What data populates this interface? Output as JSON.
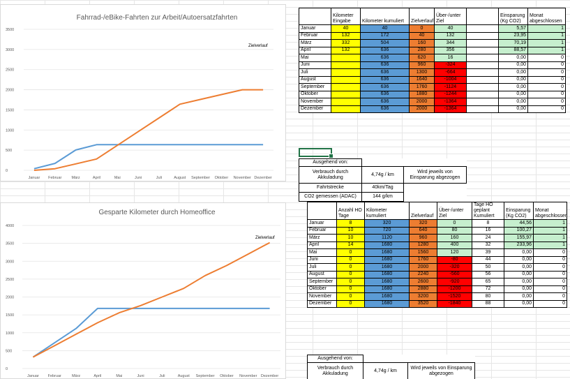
{
  "colors": {
    "series_cumulative": "#5b9bd5",
    "series_target": "#ed7d31",
    "yellow": "#ffff00",
    "blue": "#5b9bd5",
    "orange": "#ed7d31",
    "green": "#c6efce",
    "red": "#ff0000"
  },
  "chart_data": [
    {
      "type": "line",
      "title": "Fahrrad-/eBike-Fahrten zur Arbeit/Autoersatzfahrten",
      "categories": [
        "Januar",
        "Februar",
        "März",
        "April",
        "Mai",
        "Juni",
        "Juli",
        "August",
        "September",
        "Oktober",
        "November",
        "Dezember"
      ],
      "series": [
        {
          "values": [
            40,
            172,
            504,
            636,
            636,
            636,
            636,
            636,
            636,
            636,
            636,
            636
          ]
        },
        {
          "name": "Zielverlauf",
          "values": [
            0,
            40,
            160,
            280,
            620,
            960,
            1300,
            1640,
            1760,
            1880,
            2000,
            2000
          ]
        }
      ],
      "yticks": [
        0,
        500,
        1000,
        1500,
        2000,
        2500,
        3000,
        3500
      ],
      "ylim": [
        0,
        3500
      ],
      "annotation": "Zielverlauf"
    },
    {
      "type": "line",
      "title": "Gesparte Kilometer durch Homeoffice",
      "categories": [
        "Januar",
        "Februar",
        "März",
        "April",
        "Mai",
        "Juni",
        "Juli",
        "August",
        "September",
        "Oktober",
        "November",
        "Dezember"
      ],
      "series": [
        {
          "values": [
            320,
            720,
            1120,
            1680,
            1680,
            1680,
            1680,
            1680,
            1680,
            1680,
            1680,
            1680
          ]
        },
        {
          "name": "Zielverlauf",
          "values": [
            320,
            640,
            960,
            1280,
            1560,
            1760,
            2000,
            2240,
            2600,
            2880,
            3200,
            3520
          ]
        }
      ],
      "yticks": [
        0,
        500,
        1000,
        1500,
        2000,
        2500,
        3000,
        3500,
        4000
      ],
      "ylim": [
        0,
        4000
      ],
      "annotation": "Zielverlauf"
    }
  ],
  "bike_table": {
    "headers": [
      "",
      "Kilometer Eingabe",
      "Kilometer kumuliert",
      "Zielverlauf",
      "Über-/unter Ziel",
      "",
      "Einsparung (Kg CO2)",
      "Monat abgeschlossen"
    ],
    "rows": [
      [
        "Januar",
        "40",
        "40",
        "0",
        "40",
        "",
        "5,57",
        "1"
      ],
      [
        "Februar",
        "132",
        "172",
        "40",
        "132",
        "",
        "23,95",
        "1"
      ],
      [
        "März",
        "332",
        "504",
        "160",
        "344",
        "",
        "70,19",
        "1"
      ],
      [
        "April",
        "132",
        "636",
        "280",
        "356",
        "",
        "88,57",
        "1"
      ],
      [
        "Mai",
        "",
        "636",
        "620",
        "16",
        "",
        "0,00",
        "0"
      ],
      [
        "Juni",
        "",
        "636",
        "960",
        "-324",
        "",
        "0,00",
        "0"
      ],
      [
        "Juli",
        "",
        "636",
        "1300",
        "-664",
        "",
        "0,00",
        "0"
      ],
      [
        "August",
        "",
        "636",
        "1640",
        "-1004",
        "",
        "0,00",
        "0"
      ],
      [
        "September",
        "",
        "636",
        "1760",
        "-1124",
        "",
        "0,00",
        "0"
      ],
      [
        "Oktober",
        "",
        "636",
        "1880",
        "-1244",
        "",
        "0,00",
        "0"
      ],
      [
        "November",
        "",
        "636",
        "2000",
        "-1364",
        "",
        "0,00",
        "0"
      ],
      [
        "Dezember",
        "",
        "636",
        "2000",
        "-1364",
        "",
        "0,00",
        "0"
      ]
    ]
  },
  "bike_info": {
    "header": "Ausgehend von:",
    "consumption_label": "Verbrauch durch Akkuladung",
    "consumption_value": "4,74g / km",
    "note": "Wird jeweils von Einsparung abgezogen",
    "distance_label": "Fahrtstrecke",
    "distance_value": "40km/Tag",
    "co2_label": "CO2 gemessen (ADAC)",
    "co2_value": "144 g/km"
  },
  "ho_table": {
    "headers": [
      "",
      "Anzahl HO Tage",
      "Kilometer kumuliert",
      "Zielverlauf",
      "Über-/unter Ziel",
      "Tage HO geplant Kumuliert",
      "Einsparung (Kg CO2)",
      "Monat abgeschlossen"
    ],
    "rows": [
      [
        "Januar",
        "8",
        "320",
        "320",
        "0",
        "8",
        "44,56",
        "1"
      ],
      [
        "Februar",
        "10",
        "720",
        "640",
        "80",
        "16",
        "100,27",
        "1"
      ],
      [
        "März",
        "10",
        "1120",
        "960",
        "160",
        "24",
        "155,97",
        "1"
      ],
      [
        "April",
        "14",
        "1680",
        "1280",
        "400",
        "32",
        "233,96",
        "1"
      ],
      [
        "Mai",
        "0",
        "1680",
        "1560",
        "120",
        "39",
        "0,00",
        "0"
      ],
      [
        "Juni",
        "0",
        "1680",
        "1760",
        "-80",
        "44",
        "0,00",
        "0"
      ],
      [
        "Juli",
        "0",
        "1680",
        "2000",
        "-320",
        "50",
        "0,00",
        "0"
      ],
      [
        "August",
        "0",
        "1680",
        "2240",
        "-560",
        "56",
        "0,00",
        "0"
      ],
      [
        "September",
        "0",
        "1680",
        "2600",
        "-920",
        "65",
        "0,00",
        "0"
      ],
      [
        "Oktober",
        "0",
        "1680",
        "2880",
        "-1200",
        "72",
        "0,00",
        "0"
      ],
      [
        "November",
        "0",
        "1680",
        "3200",
        "-1520",
        "80",
        "0,00",
        "0"
      ],
      [
        "Dezember",
        "0",
        "1680",
        "3520",
        "-1840",
        "88",
        "0,00",
        "0"
      ]
    ]
  },
  "ho_info": {
    "header": "Ausgehend von:",
    "consumption_label": "Verbrauch durch Akkuladung",
    "consumption_value": "4,74g / km",
    "note": "Wird jeweils von Einsparung abgezogen"
  }
}
